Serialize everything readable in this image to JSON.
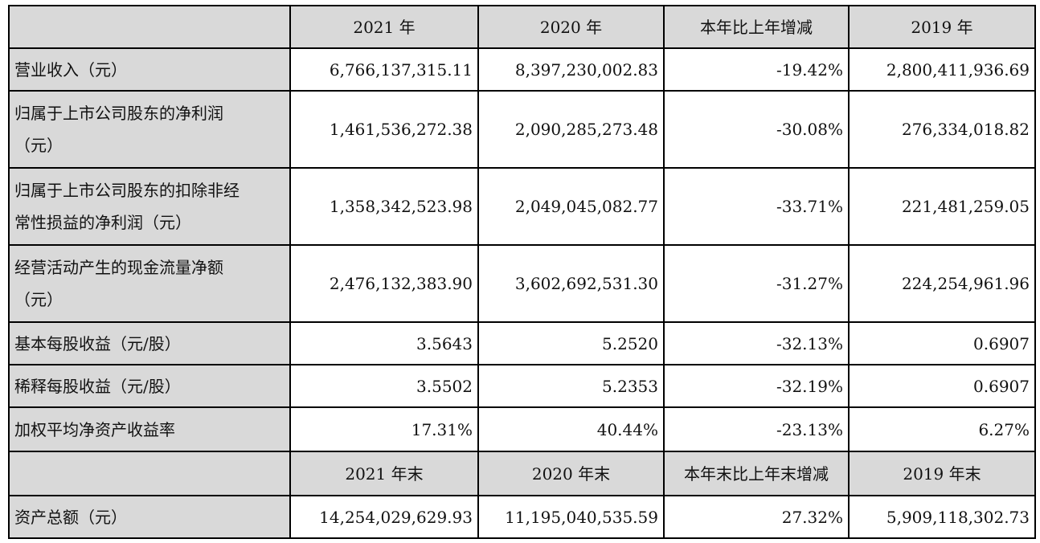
{
  "table": {
    "header1": [
      "2021 年",
      "2020 年",
      "本年比上年增减",
      "2019 年"
    ],
    "rows1": [
      {
        "label": [
          "营业收入（元）"
        ],
        "values": [
          "6,766,137,315.11",
          "8,397,230,002.83",
          "-19.42%",
          "2,800,411,936.69"
        ]
      },
      {
        "label": [
          "归属于上市公司股东的净利润",
          "（元）"
        ],
        "values": [
          "1,461,536,272.38",
          "2,090,285,273.48",
          "-30.08%",
          "276,334,018.82"
        ]
      },
      {
        "label": [
          "归属于上市公司股东的扣除非经",
          "常性损益的净利润（元）"
        ],
        "values": [
          "1,358,342,523.98",
          "2,049,045,082.77",
          "-33.71%",
          "221,481,259.05"
        ]
      },
      {
        "label": [
          "经营活动产生的现金流量净额",
          "（元）"
        ],
        "values": [
          "2,476,132,383.90",
          "3,602,692,531.30",
          "-31.27%",
          "224,254,961.96"
        ]
      },
      {
        "label": [
          "基本每股收益（元/股）"
        ],
        "values": [
          "3.5643",
          "5.2520",
          "-32.13%",
          "0.6907"
        ]
      },
      {
        "label": [
          "稀释每股收益（元/股）"
        ],
        "values": [
          "3.5502",
          "5.2353",
          "-32.19%",
          "0.6907"
        ]
      },
      {
        "label": [
          "加权平均净资产收益率"
        ],
        "values": [
          "17.31%",
          "40.44%",
          "-23.13%",
          "6.27%"
        ]
      }
    ],
    "header2": [
      "2021 年末",
      "2020 年末",
      "本年末比上年末增减",
      "2019 年末"
    ],
    "rows2": [
      {
        "label": [
          "资产总额（元）"
        ],
        "values": [
          "14,254,029,629.93",
          "11,195,040,535.59",
          "27.32%",
          "5,909,118,302.73"
        ]
      }
    ]
  }
}
